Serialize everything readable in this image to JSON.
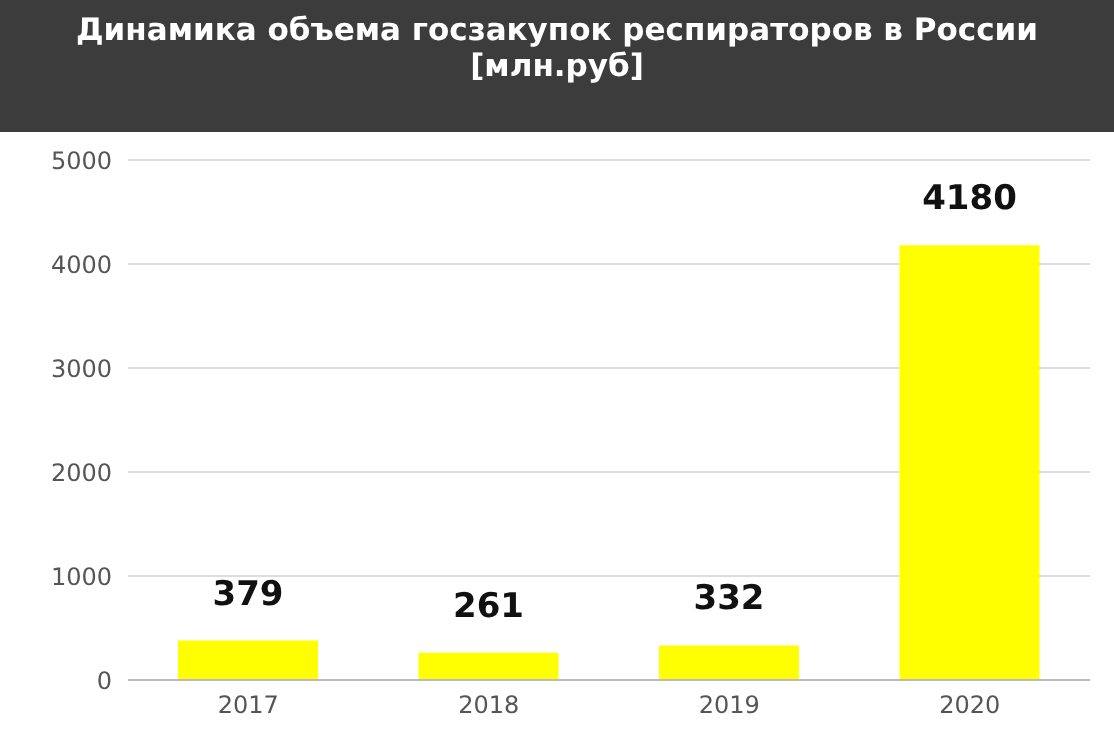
{
  "chart_data": {
    "type": "bar",
    "title": "Динамика объема госзакупок респираторов в России [млн.руб]",
    "categories": [
      "2017",
      "2018",
      "2019",
      "2020"
    ],
    "values": [
      379,
      261,
      332,
      4180
    ],
    "color": "#ffff00",
    "ylim": [
      0,
      5000
    ],
    "yticks": [
      0,
      1000,
      2000,
      3000,
      4000,
      5000
    ],
    "grid": "y",
    "data_labels": true,
    "legend": false
  }
}
